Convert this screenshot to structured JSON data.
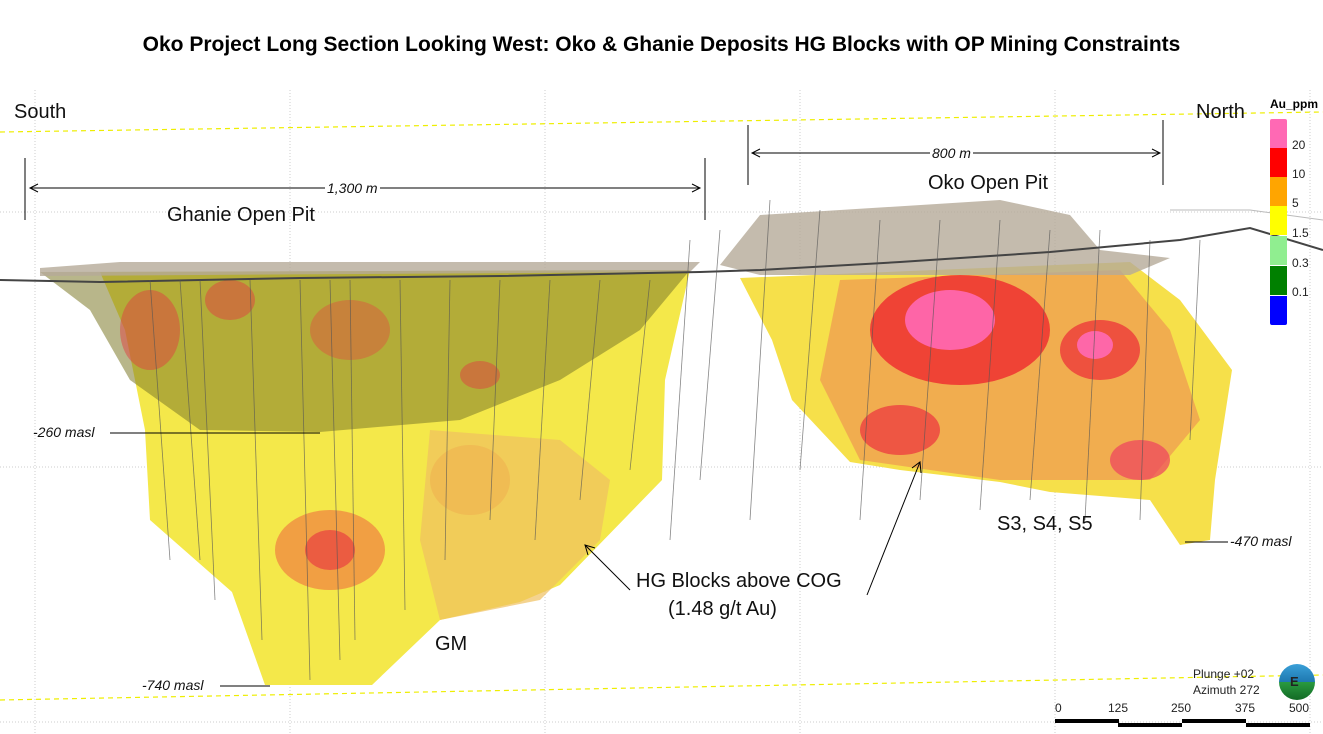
{
  "title": "Oko Project Long Section Looking West: Oko & Ghanie Deposits HG Blocks with OP Mining Constraints",
  "labels": {
    "south": "South",
    "north": "North",
    "ghanie_pit": "Ghanie Open Pit",
    "oko_pit": "Oko Open Pit",
    "ghanie_width": "1,300 m",
    "oko_width": "800 m",
    "elev_260": "-260 masl",
    "elev_740": "-740 masl",
    "elev_470": "-470 masl",
    "gm": "GM",
    "s345": "S3, S4, S5",
    "hg_line1": "HG Blocks above COG",
    "hg_line2": "(1.48 g/t Au)"
  },
  "legend": {
    "title": "Au_ppm",
    "bins": [
      {
        "label": "20",
        "color": "#ff69b4"
      },
      {
        "label": "10",
        "color": "#ff0000"
      },
      {
        "label": "5",
        "color": "#ffa500"
      },
      {
        "label": "1.5",
        "color": "#ffff00"
      },
      {
        "label": "0.3",
        "color": "#90ee90"
      },
      {
        "label": "0.1",
        "color": "#008000"
      },
      {
        "label": "",
        "color": "#0000ff"
      }
    ]
  },
  "view": {
    "plunge": "Plunge +02",
    "azimuth": "Azimuth 272",
    "compass": "E"
  },
  "scale": {
    "ticks": [
      "0",
      "125",
      "250",
      "375",
      "500"
    ]
  }
}
